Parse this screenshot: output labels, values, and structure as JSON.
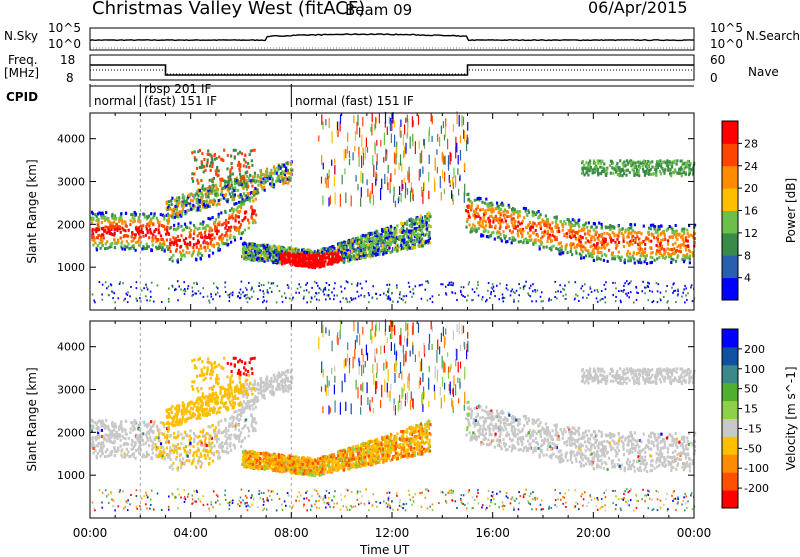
{
  "header": {
    "title": "Christmas Valley West (fitACF)",
    "beam": "Beam 09",
    "date": "06/Apr/2015"
  },
  "strip_labels": {
    "nsky": "N.Sky",
    "freq_line1": "Freq.",
    "freq_line2": "[MHz]",
    "cpid": "CPID",
    "nsearch": "N.Search",
    "nave": "Nave"
  },
  "nsky_axis": {
    "top": "10^5",
    "bottom": "10^0"
  },
  "freq_axis": {
    "top": "18",
    "bottom": "8"
  },
  "nave_axis": {
    "top": "60",
    "bottom": "0"
  },
  "cpid_segments": [
    {
      "start_hour": 0.0,
      "label": "normal"
    },
    {
      "start_hour": 2.0,
      "label": "rbsp 201 IF"
    },
    {
      "start_hour": 3.0,
      "label": "(fast) 151 IF"
    },
    {
      "start_hour": 8.0,
      "label": "normal (fast) 151 IF"
    }
  ],
  "colors": {
    "power_scale": [
      "#0000ff",
      "#2a5fb0",
      "#3a8a4a",
      "#6cc04a",
      "#ffbf00",
      "#ff8c00",
      "#ff4500",
      "#ff0000"
    ],
    "velocity_scale": [
      "#ff0000",
      "#ff5000",
      "#ff8c00",
      "#ffbf00",
      "#c8c8c8",
      "#8fd04a",
      "#4fb030",
      "#3a8a8a",
      "#1050a0",
      "#0000ff"
    ]
  },
  "chart_data": [
    {
      "type": "heatmap",
      "quantity": "Power",
      "x": "time (hours UT)",
      "xlim": [
        0,
        24
      ],
      "ylabel": "Slant Range [km]",
      "ylim": [
        0,
        4600
      ],
      "yticks": [
        1000,
        2000,
        3000,
        4000
      ],
      "colorbar": {
        "label": "Power [dB]",
        "range": [
          0,
          32
        ],
        "ticks": [
          "4",
          "8",
          "12",
          "16",
          "20",
          "24",
          "28"
        ]
      },
      "regions": [
        {
          "name": "main band",
          "t": [
            0,
            2,
            3.1,
            3.1,
            4.5,
            6,
            6.7,
            15,
            15,
            18,
            20,
            22,
            24
          ],
          "range": [
            1800,
            1800,
            1750,
            1500,
            1600,
            2100,
            2400,
            2300,
            2200,
            1800,
            1550,
            1500,
            1500
          ]
        },
        {
          "name": "lower loop",
          "t": [
            5.8,
            8,
            10,
            12,
            13
          ],
          "range": [
            1100,
            900,
            1300,
            1500,
            1500
          ]
        }
      ]
    },
    {
      "type": "heatmap",
      "quantity": "Velocity",
      "x": "time (hours UT)",
      "xlim": [
        0,
        24
      ],
      "xlabel": "Time UT",
      "xticks": [
        "00:00",
        "04:00",
        "08:00",
        "12:00",
        "16:00",
        "20:00",
        "00:00"
      ],
      "ylabel": "Slant Range [km]",
      "ylim": [
        0,
        4600
      ],
      "yticks": [
        1000,
        2000,
        3000,
        4000
      ],
      "colorbar": {
        "label": "Velocity [m s^-1]",
        "range": [
          -250,
          250
        ],
        "ticks": [
          "-200",
          "-100",
          "-50",
          "-15",
          "15",
          "50",
          "100",
          "200"
        ]
      }
    }
  ]
}
